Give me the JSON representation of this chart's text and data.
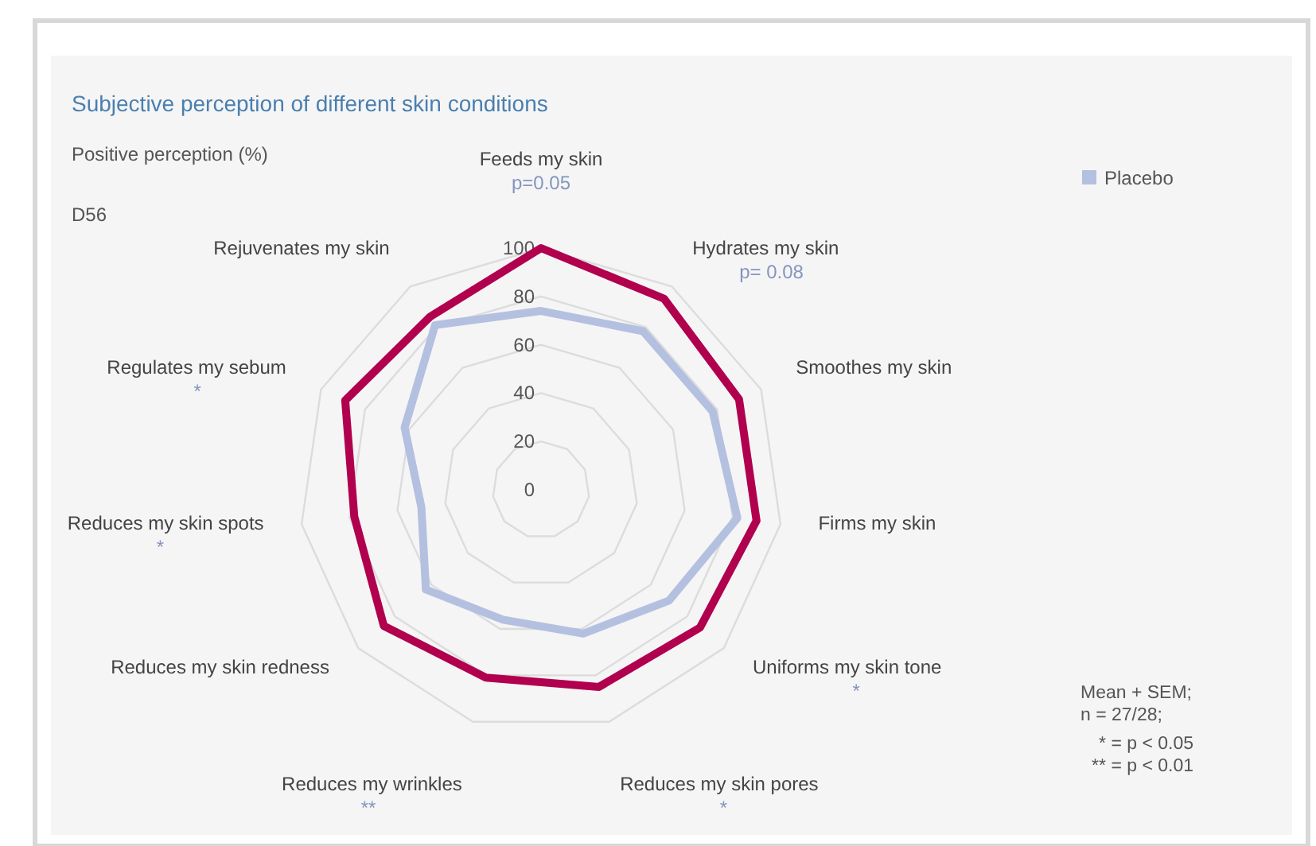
{
  "chart_data": {
    "type": "radar",
    "title": "Subjective perception of different skin conditions",
    "subtitle": "Positive perception (%)",
    "categories": [
      "Feeds my skin",
      "Hydrates my skin",
      "Smoothes my skin",
      "Firms my skin",
      "Uniforms my skin tone",
      "Reduces my skin pores",
      "Reduces my wrinkles",
      "Reduces my skin redness",
      "Reduces my skin spots",
      "Regulates my sebum",
      "Rejuvenates my skin"
    ],
    "series": [
      {
        "name": "Placebo",
        "color": "#b4c0e0",
        "values": [
          74,
          78,
          78,
          82,
          70,
          62,
          56,
          63,
          50,
          62,
          81
        ]
      },
      {
        "color": "#b0004e",
        "values": [
          100,
          94,
          90,
          90,
          87,
          85,
          81,
          86,
          78,
          89,
          85
        ]
      }
    ],
    "ylim": [
      0,
      100
    ],
    "yticks": [
      0,
      20,
      40,
      60,
      80,
      100
    ],
    "grid": true,
    "legend": "top right",
    "annotations": [
      "D56",
      {
        "text": "p=0.05",
        "x": "Feeds my skin"
      },
      {
        "text": "p= 0.08",
        "x": "Hydrates my skin"
      },
      {
        "text": "*",
        "x": "Uniforms my skin tone"
      },
      {
        "text": "*",
        "x": "Reduces my skin pores"
      },
      {
        "text": "**",
        "x": "Reduces my wrinkles"
      },
      {
        "text": "*",
        "x": "Reduces my skin spots"
      },
      {
        "text": "*",
        "x": "Regulates my sebum"
      },
      "Mean + SEM;",
      "n = 27/28;",
      "* = p < 0.05",
      "** = p < 0.01"
    ]
  }
}
